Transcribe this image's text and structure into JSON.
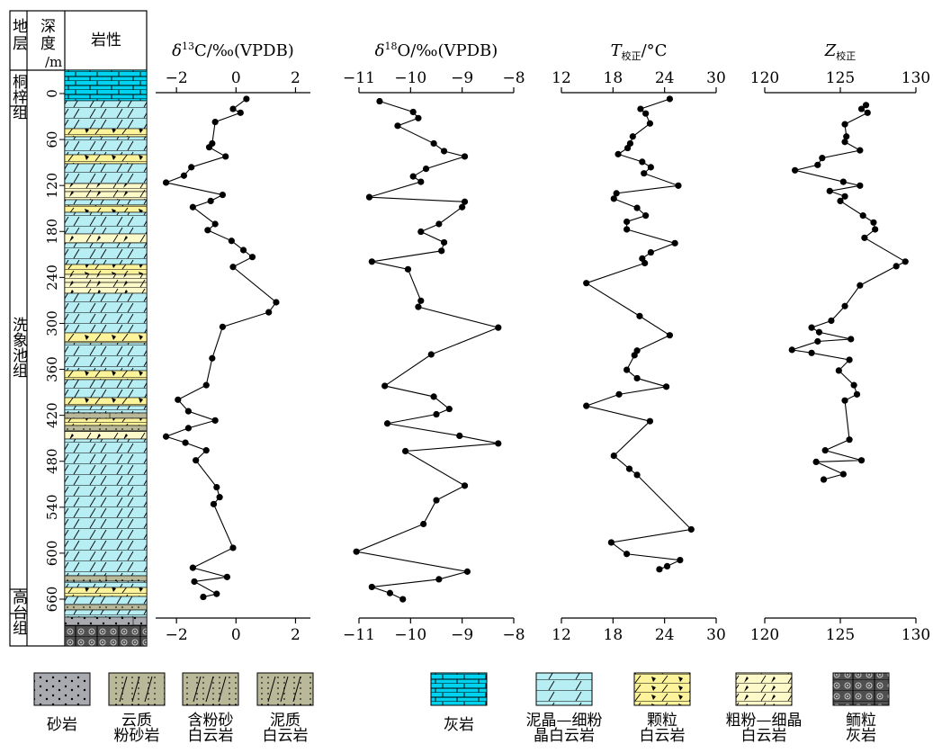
{
  "header": {
    "formation": "地层",
    "depth": "深度",
    "depth_unit": "/m",
    "lithology": "岩性"
  },
  "formations": [
    "桐梓组",
    "洗象池组",
    "高台组"
  ],
  "depth_axis": {
    "ticks": [
      0,
      60,
      120,
      180,
      240,
      300,
      360,
      420,
      480,
      540,
      600,
      660
    ]
  },
  "colors": {
    "limestone": "#00d3f0",
    "fine_dolomite": "#b6eef4",
    "grain_dolomite": "#fdf39a",
    "coarse_dolomite": "#fef9c8",
    "sandstone": "#a8aab0",
    "silty": "#b9b99a",
    "oolitic": "#505050",
    "line": "#000000"
  },
  "legend": [
    {
      "label": "砂岩",
      "type": "sandstone"
    },
    {
      "label": "云质粉砂岩",
      "type": "dolo_siltstone"
    },
    {
      "label": "含粉砂白云岩",
      "type": "silty_dolomite"
    },
    {
      "label": "泥质白云岩",
      "type": "muddy_dolomite"
    },
    {
      "label": "灰岩",
      "type": "limestone"
    },
    {
      "label": "泥晶—细粉晶白云岩",
      "type": "fine_dolomite"
    },
    {
      "label": "颗粒白云岩",
      "type": "grain_dolomite"
    },
    {
      "label": "粗粉—细晶白云岩",
      "type": "coarse_dolomite"
    },
    {
      "label": "鲕粒灰岩",
      "type": "oolitic"
    }
  ],
  "chart_data": [
    {
      "type": "line",
      "title": "δ13C/‰(VPDB)",
      "xlim": [
        -2.7,
        2.5
      ],
      "xticks": [
        -2,
        0,
        2
      ],
      "points": [
        [
          0.35,
          7
        ],
        [
          -0.1,
          20
        ],
        [
          0.15,
          25
        ],
        [
          -0.7,
          37
        ],
        [
          -0.8,
          65
        ],
        [
          -0.9,
          70
        ],
        [
          -0.35,
          82
        ],
        [
          -1.5,
          96
        ],
        [
          -1.75,
          107
        ],
        [
          -2.35,
          116
        ],
        [
          -0.45,
          132
        ],
        [
          -0.85,
          140
        ],
        [
          -1.45,
          148
        ],
        [
          -0.7,
          170
        ],
        [
          -0.95,
          178
        ],
        [
          -0.15,
          192
        ],
        [
          0.25,
          204
        ],
        [
          0.55,
          213
        ],
        [
          -0.1,
          226
        ],
        [
          1.35,
          272
        ],
        [
          1.1,
          285
        ],
        [
          -0.45,
          304
        ],
        [
          -0.8,
          345
        ],
        [
          -1.0,
          380
        ],
        [
          -1.95,
          399
        ],
        [
          -1.6,
          414
        ],
        [
          -0.7,
          426
        ],
        [
          -1.6,
          436
        ],
        [
          -2.35,
          447
        ],
        [
          -1.7,
          455
        ],
        [
          -1.0,
          465
        ],
        [
          -1.35,
          478
        ],
        [
          -0.65,
          513
        ],
        [
          -0.55,
          526
        ],
        [
          -0.75,
          535
        ],
        [
          -0.1,
          592
        ],
        [
          -1.45,
          618
        ],
        [
          -0.3,
          630
        ],
        [
          -1.4,
          636
        ],
        [
          -0.65,
          652
        ],
        [
          -1.1,
          656
        ]
      ]
    },
    {
      "type": "line",
      "title": "δ18O/‰(VPDB)",
      "xlim": [
        -11.0,
        -8.0
      ],
      "xticks": [
        -11,
        -10,
        -9,
        -8
      ],
      "points": [
        [
          -10.6,
          10
        ],
        [
          -9.95,
          24
        ],
        [
          -9.85,
          32
        ],
        [
          -10.25,
          42
        ],
        [
          -9.55,
          65
        ],
        [
          -9.35,
          75
        ],
        [
          -8.95,
          82
        ],
        [
          -9.7,
          98
        ],
        [
          -9.95,
          108
        ],
        [
          -9.8,
          115
        ],
        [
          -10.8,
          135
        ],
        [
          -8.95,
          141
        ],
        [
          -9.0,
          148
        ],
        [
          -9.45,
          170
        ],
        [
          -9.8,
          180
        ],
        [
          -9.35,
          194
        ],
        [
          -9.4,
          205
        ],
        [
          -10.75,
          219
        ],
        [
          -10.05,
          229
        ],
        [
          -9.8,
          270
        ],
        [
          -9.85,
          278
        ],
        [
          -8.3,
          305
        ],
        [
          -9.6,
          340
        ],
        [
          -10.5,
          381
        ],
        [
          -9.55,
          395
        ],
        [
          -9.25,
          411
        ],
        [
          -9.5,
          418
        ],
        [
          -10.45,
          430
        ],
        [
          -9.05,
          446
        ],
        [
          -8.3,
          456
        ],
        [
          -10.1,
          466
        ],
        [
          -8.95,
          511
        ],
        [
          -9.5,
          530
        ],
        [
          -9.75,
          561
        ],
        [
          -11.05,
          597
        ],
        [
          -8.9,
          623
        ],
        [
          -9.45,
          633
        ],
        [
          -10.75,
          643
        ],
        [
          -10.4,
          651
        ],
        [
          -10.15,
          659
        ]
      ]
    },
    {
      "type": "line",
      "title": "T校正/°C",
      "xlim": [
        12,
        30
      ],
      "xticks": [
        12,
        18,
        24,
        30
      ],
      "points": [
        [
          24.6,
          7
        ],
        [
          21.2,
          20
        ],
        [
          21.8,
          26
        ],
        [
          22.3,
          39
        ],
        [
          20.3,
          56
        ],
        [
          20.0,
          65
        ],
        [
          19.7,
          71
        ],
        [
          18.6,
          79
        ],
        [
          21.4,
          89
        ],
        [
          22.4,
          96
        ],
        [
          21.6,
          104
        ],
        [
          25.6,
          120
        ],
        [
          18.4,
          130
        ],
        [
          18.1,
          137
        ],
        [
          20.8,
          149
        ],
        [
          21.8,
          159
        ],
        [
          19.6,
          167
        ],
        [
          19.6,
          177
        ],
        [
          25.2,
          195
        ],
        [
          22.4,
          207
        ],
        [
          21.4,
          215
        ],
        [
          21.7,
          221
        ],
        [
          14.9,
          247
        ],
        [
          21.1,
          290
        ],
        [
          24.6,
          315
        ],
        [
          20.8,
          335
        ],
        [
          20.5,
          341
        ],
        [
          19.6,
          360
        ],
        [
          20.8,
          371
        ],
        [
          24.2,
          382
        ],
        [
          18.7,
          392
        ],
        [
          14.9,
          407
        ],
        [
          22.3,
          427
        ],
        [
          18.1,
          472
        ],
        [
          19.9,
          489
        ],
        [
          20.8,
          497
        ],
        [
          27.1,
          568
        ],
        [
          17.8,
          585
        ],
        [
          19.6,
          600
        ],
        [
          25.8,
          608
        ],
        [
          24.3,
          616
        ],
        [
          23.4,
          620
        ]
      ]
    },
    {
      "type": "line",
      "title": "Z校正",
      "xlim": [
        120,
        130
      ],
      "xticks": [
        120,
        125,
        130
      ],
      "points": [
        [
          126.7,
          15
        ],
        [
          126.4,
          20
        ],
        [
          126.8,
          25
        ],
        [
          125.3,
          40
        ],
        [
          125.4,
          56
        ],
        [
          125.3,
          63
        ],
        [
          126.3,
          74
        ],
        [
          123.8,
          84
        ],
        [
          123.5,
          93
        ],
        [
          122.0,
          100
        ],
        [
          125.2,
          115
        ],
        [
          126.3,
          120
        ],
        [
          124.3,
          127
        ],
        [
          125.3,
          134
        ],
        [
          125.0,
          140
        ],
        [
          126.5,
          159
        ],
        [
          127.2,
          168
        ],
        [
          127.3,
          177
        ],
        [
          126.6,
          188
        ],
        [
          129.3,
          219
        ],
        [
          128.7,
          225
        ],
        [
          126.3,
          250
        ],
        [
          125.3,
          277
        ],
        [
          124.4,
          296
        ],
        [
          123.1,
          305
        ],
        [
          123.6,
          311
        ],
        [
          125.7,
          320
        ],
        [
          123.5,
          323
        ],
        [
          121.8,
          334
        ],
        [
          123.1,
          338
        ],
        [
          125.6,
          347
        ],
        [
          124.9,
          361
        ],
        [
          125.9,
          380
        ],
        [
          126.1,
          392
        ],
        [
          125.3,
          400
        ],
        [
          125.6,
          451
        ],
        [
          124.0,
          465
        ],
        [
          126.4,
          478
        ],
        [
          123.4,
          480
        ],
        [
          125.2,
          496
        ],
        [
          123.9,
          503
        ]
      ]
    }
  ]
}
